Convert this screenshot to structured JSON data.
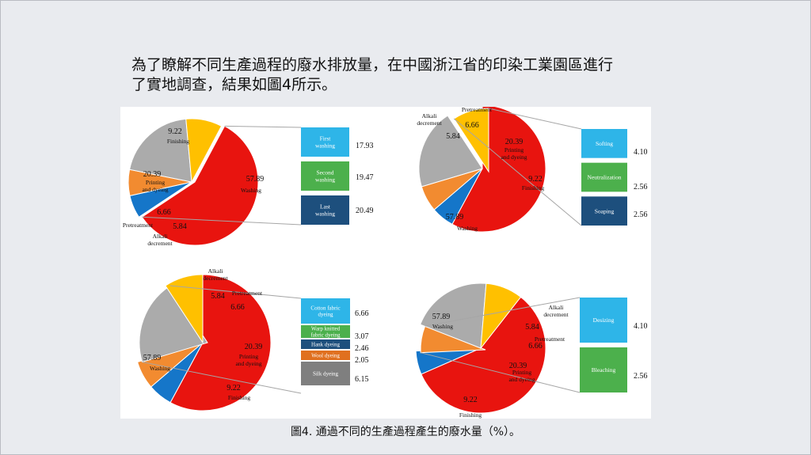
{
  "heading": {
    "line1": "為了瞭解不同生產過程的廢水排放量，在中國浙江省的印染工業園區進行",
    "line2": "了實地調查，結果如圖4所示。"
  },
  "caption": "圖4. 通過不同的生產過程產生的廢水量（%）。",
  "colors": {
    "Washing": "#e8140f",
    "Printing and dyeing": "#ababab",
    "Finishing": "#ffc000",
    "Pretreatment": "#f28b30",
    "Alkali decrement": "#1576c9",
    "sub_cyan": "#2eb5e8",
    "sub_green": "#4cb04c",
    "sub_navy": "#1d4f7d",
    "sub_orange": "#e0701f",
    "sub_gray": "#7f7f7f"
  },
  "chart_data": [
    {
      "type": "pie",
      "panel": "top-left",
      "slices": [
        {
          "label": "Washing",
          "value": 57.89
        },
        {
          "label": "Alkali decrement",
          "value": 5.84
        },
        {
          "label": "Pretreatment",
          "value": 6.66
        },
        {
          "label": "Printing and dyeing",
          "value": 20.39
        },
        {
          "label": "Finishing",
          "value": 9.22
        }
      ],
      "exploded": "Washing",
      "breakdown": [
        {
          "label": "First washing",
          "value": 17.93
        },
        {
          "label": "Second washing",
          "value": 19.47
        },
        {
          "label": "Last washing",
          "value": 20.49
        }
      ]
    },
    {
      "type": "pie",
      "panel": "top-right",
      "slices": [
        {
          "label": "Washing",
          "value": 57.89
        },
        {
          "label": "Alkali decrement",
          "value": 5.84
        },
        {
          "label": "Pretreatment",
          "value": 6.66
        },
        {
          "label": "Printing and dyeing",
          "value": 20.39
        },
        {
          "label": "Finishing",
          "value": 9.22
        }
      ],
      "exploded": "Finishing",
      "breakdown": [
        {
          "label": "Softing",
          "value": 4.1
        },
        {
          "label": "Neutralization",
          "value": 2.56
        },
        {
          "label": "Soaping",
          "value": 2.56
        }
      ]
    },
    {
      "type": "pie",
      "panel": "bottom-left",
      "slices": [
        {
          "label": "Washing",
          "value": 57.89
        },
        {
          "label": "Alkali decrement",
          "value": 5.84
        },
        {
          "label": "Pretreatment",
          "value": 6.66
        },
        {
          "label": "Printing and dyeing",
          "value": 20.39
        },
        {
          "label": "Finishing",
          "value": 9.22
        }
      ],
      "exploded": "Printing and dyeing",
      "breakdown": [
        {
          "label": "Cotton fabric dyeing",
          "value": 6.66
        },
        {
          "label": "Warp knitted fabric dyeing",
          "value": 3.07
        },
        {
          "label": "Hank dyeing",
          "value": 2.46
        },
        {
          "label": "Wool dyeing",
          "value": 2.05
        },
        {
          "label": "Silk dyeing",
          "value": 6.15
        }
      ]
    },
    {
      "type": "pie",
      "panel": "bottom-right",
      "slices": [
        {
          "label": "Washing",
          "value": 57.89
        },
        {
          "label": "Alkali decrement",
          "value": 5.84
        },
        {
          "label": "Pretreatment",
          "value": 6.66
        },
        {
          "label": "Printing and dyeing",
          "value": 20.39
        },
        {
          "label": "Finishing",
          "value": 9.22
        }
      ],
      "exploded": "Pretreatment",
      "breakdown": [
        {
          "label": "Desizing",
          "value": 4.1
        },
        {
          "label": "Bleaching",
          "value": 2.56
        }
      ]
    }
  ]
}
